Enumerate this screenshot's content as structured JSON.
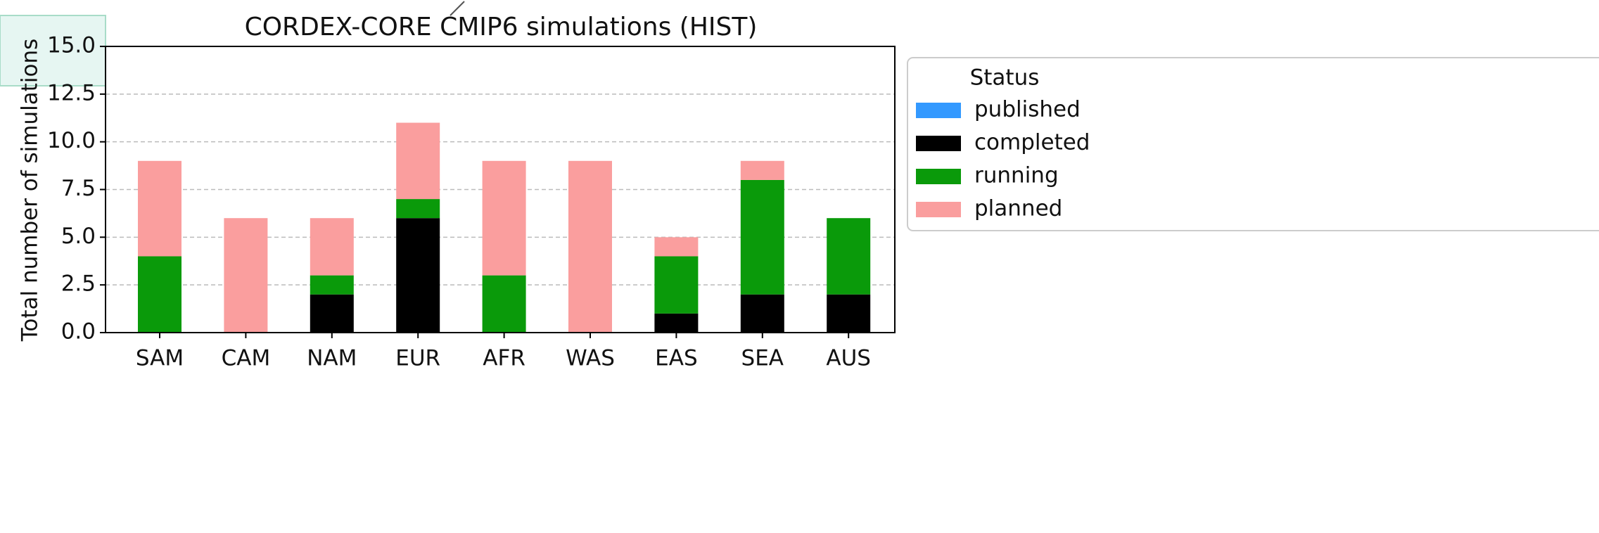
{
  "chart_data": {
    "type": "stacked_bar",
    "title": "CORDEX-CORE CMIP6 simulations (HIST)",
    "y_label": "Total number of simulations",
    "categories": [
      "SAM",
      "CAM",
      "NAM",
      "EUR",
      "AFR",
      "WAS",
      "EAS",
      "SEA",
      "AUS"
    ],
    "legend_title": "Status",
    "legend_position": "right",
    "series": [
      {
        "name": "published",
        "color": "#3399ff",
        "values": [
          0,
          0,
          0,
          0,
          0,
          0,
          0,
          0,
          0
        ]
      },
      {
        "name": "completed",
        "color": "#000000",
        "values": [
          0,
          0,
          2,
          6,
          0,
          0,
          1,
          2,
          2
        ]
      },
      {
        "name": "running",
        "color": "#0a9a0a",
        "values": [
          4,
          0,
          1,
          1,
          3,
          0,
          3,
          6,
          4
        ]
      },
      {
        "name": "planned",
        "color": "#fa9e9e",
        "values": [
          5,
          6,
          3,
          4,
          6,
          9,
          1,
          1,
          0
        ]
      }
    ],
    "ylim": [
      0,
      15
    ],
    "yticks": [
      {
        "value": 0,
        "label": "0.0"
      },
      2.5,
      {
        "value": 5,
        "label": "5.0"
      },
      7.5,
      {
        "value": 10,
        "label": "10.0"
      },
      12.5,
      {
        "value": 15,
        "label": "15.0"
      }
    ],
    "grid": true
  }
}
